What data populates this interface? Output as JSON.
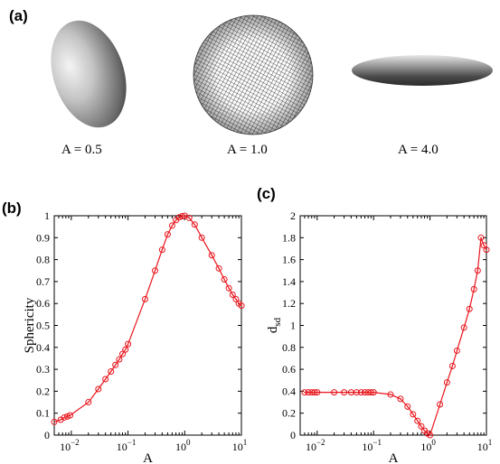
{
  "panel_a": {
    "letter": "(a)",
    "shapes": [
      {
        "label": "A = 0.5"
      },
      {
        "label": "A = 1.0"
      },
      {
        "label": "A = 4.0"
      }
    ]
  },
  "chart_data": [
    {
      "panel": "(b)",
      "type": "line",
      "xscale": "log",
      "xlim": [
        0.005,
        10
      ],
      "ylim": [
        0,
        1
      ],
      "xlabel": "A",
      "ylabel": "Sphericity",
      "xticks": [
        {
          "value": 0.01,
          "base": "10",
          "exp": "−2"
        },
        {
          "value": 0.1,
          "base": "10",
          "exp": "−1"
        },
        {
          "value": 1,
          "base": "10",
          "exp": "0"
        },
        {
          "value": 10,
          "base": "10",
          "exp": "1"
        }
      ],
      "yticks": [
        "0",
        "0.1",
        "0.2",
        "0.3",
        "0.4",
        "0.5",
        "0.6",
        "0.7",
        "0.8",
        "0.9",
        "1"
      ],
      "color": "#e8141b",
      "marker": "circle",
      "series": [
        {
          "x": [
            0.005,
            0.0065,
            0.0075,
            0.0085,
            0.0095,
            0.02,
            0.03,
            0.04,
            0.05,
            0.06,
            0.07,
            0.08,
            0.09,
            0.1,
            0.2,
            0.3,
            0.4,
            0.5,
            0.6,
            0.7,
            0.8,
            0.9,
            1.0,
            1.2,
            1.5,
            2,
            3,
            4,
            5,
            6,
            7,
            8,
            9,
            10
          ],
          "y": [
            0.06,
            0.07,
            0.08,
            0.085,
            0.09,
            0.15,
            0.21,
            0.255,
            0.29,
            0.32,
            0.345,
            0.37,
            0.39,
            0.415,
            0.62,
            0.75,
            0.845,
            0.915,
            0.955,
            0.98,
            0.993,
            0.998,
            1.0,
            0.99,
            0.96,
            0.9,
            0.82,
            0.76,
            0.71,
            0.67,
            0.64,
            0.62,
            0.6,
            0.59
          ]
        }
      ]
    },
    {
      "panel": "(c)",
      "type": "line",
      "xscale": "log",
      "xlim": [
        0.005,
        10
      ],
      "ylim": [
        0,
        2
      ],
      "xlabel": "A",
      "ylabel_main": "d",
      "ylabel_sub": "sd",
      "xticks": [
        {
          "value": 0.01,
          "base": "10",
          "exp": "−2"
        },
        {
          "value": 0.1,
          "base": "10",
          "exp": "−1"
        },
        {
          "value": 1,
          "base": "10",
          "exp": "0"
        },
        {
          "value": 10,
          "base": "10",
          "exp": "1"
        }
      ],
      "yticks": [
        "0",
        "0.2",
        "0.4",
        "0.6",
        "0.8",
        "1",
        "1.2",
        "1.4",
        "1.6",
        "1.8",
        "2"
      ],
      "color": "#e8141b",
      "marker": "circle",
      "series": [
        {
          "x": [
            0.006,
            0.007,
            0.008,
            0.009,
            0.01,
            0.02,
            0.03,
            0.04,
            0.05,
            0.06,
            0.07,
            0.08,
            0.09,
            0.1,
            0.2,
            0.3,
            0.4,
            0.5,
            0.6,
            0.7,
            0.8,
            0.9,
            1.0,
            1.5,
            2,
            2.5,
            3,
            4,
            5,
            6,
            7,
            8,
            9,
            10
          ],
          "y": [
            0.39,
            0.39,
            0.39,
            0.39,
            0.39,
            0.39,
            0.39,
            0.39,
            0.39,
            0.39,
            0.39,
            0.39,
            0.39,
            0.39,
            0.37,
            0.33,
            0.26,
            0.19,
            0.13,
            0.08,
            0.04,
            0.015,
            0.0,
            0.28,
            0.48,
            0.63,
            0.77,
            0.98,
            1.15,
            1.33,
            1.5,
            1.8,
            1.73,
            1.69
          ]
        }
      ]
    }
  ]
}
